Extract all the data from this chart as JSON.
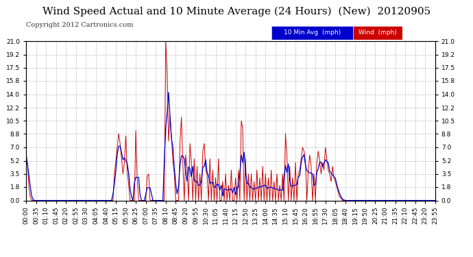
{
  "title": "Wind Speed Actual and 10 Minute Average (24 Hours)  (New)  20120905",
  "copyright": "Copyright 2012 Cartronics.com",
  "yticks": [
    0.0,
    1.8,
    3.5,
    5.2,
    7.0,
    8.8,
    10.5,
    12.2,
    14.0,
    15.8,
    17.5,
    19.2,
    21.0
  ],
  "ylim": [
    0.0,
    21.0
  ],
  "bg_color": "#ffffff",
  "plot_bg_color": "#ffffff",
  "grid_color": "#aaaaaa",
  "wind_color": "#cc0000",
  "avg_color": "#0000cc",
  "legend_avg_bg": "#0000cc",
  "legend_wind_bg": "#cc0000",
  "legend_avg_text": "10 Min Avg  (mph)",
  "legend_wind_text": "Wind  (mph)",
  "title_fontsize": 11,
  "copyright_fontsize": 7,
  "tick_fontsize": 6.5,
  "num_points": 288
}
